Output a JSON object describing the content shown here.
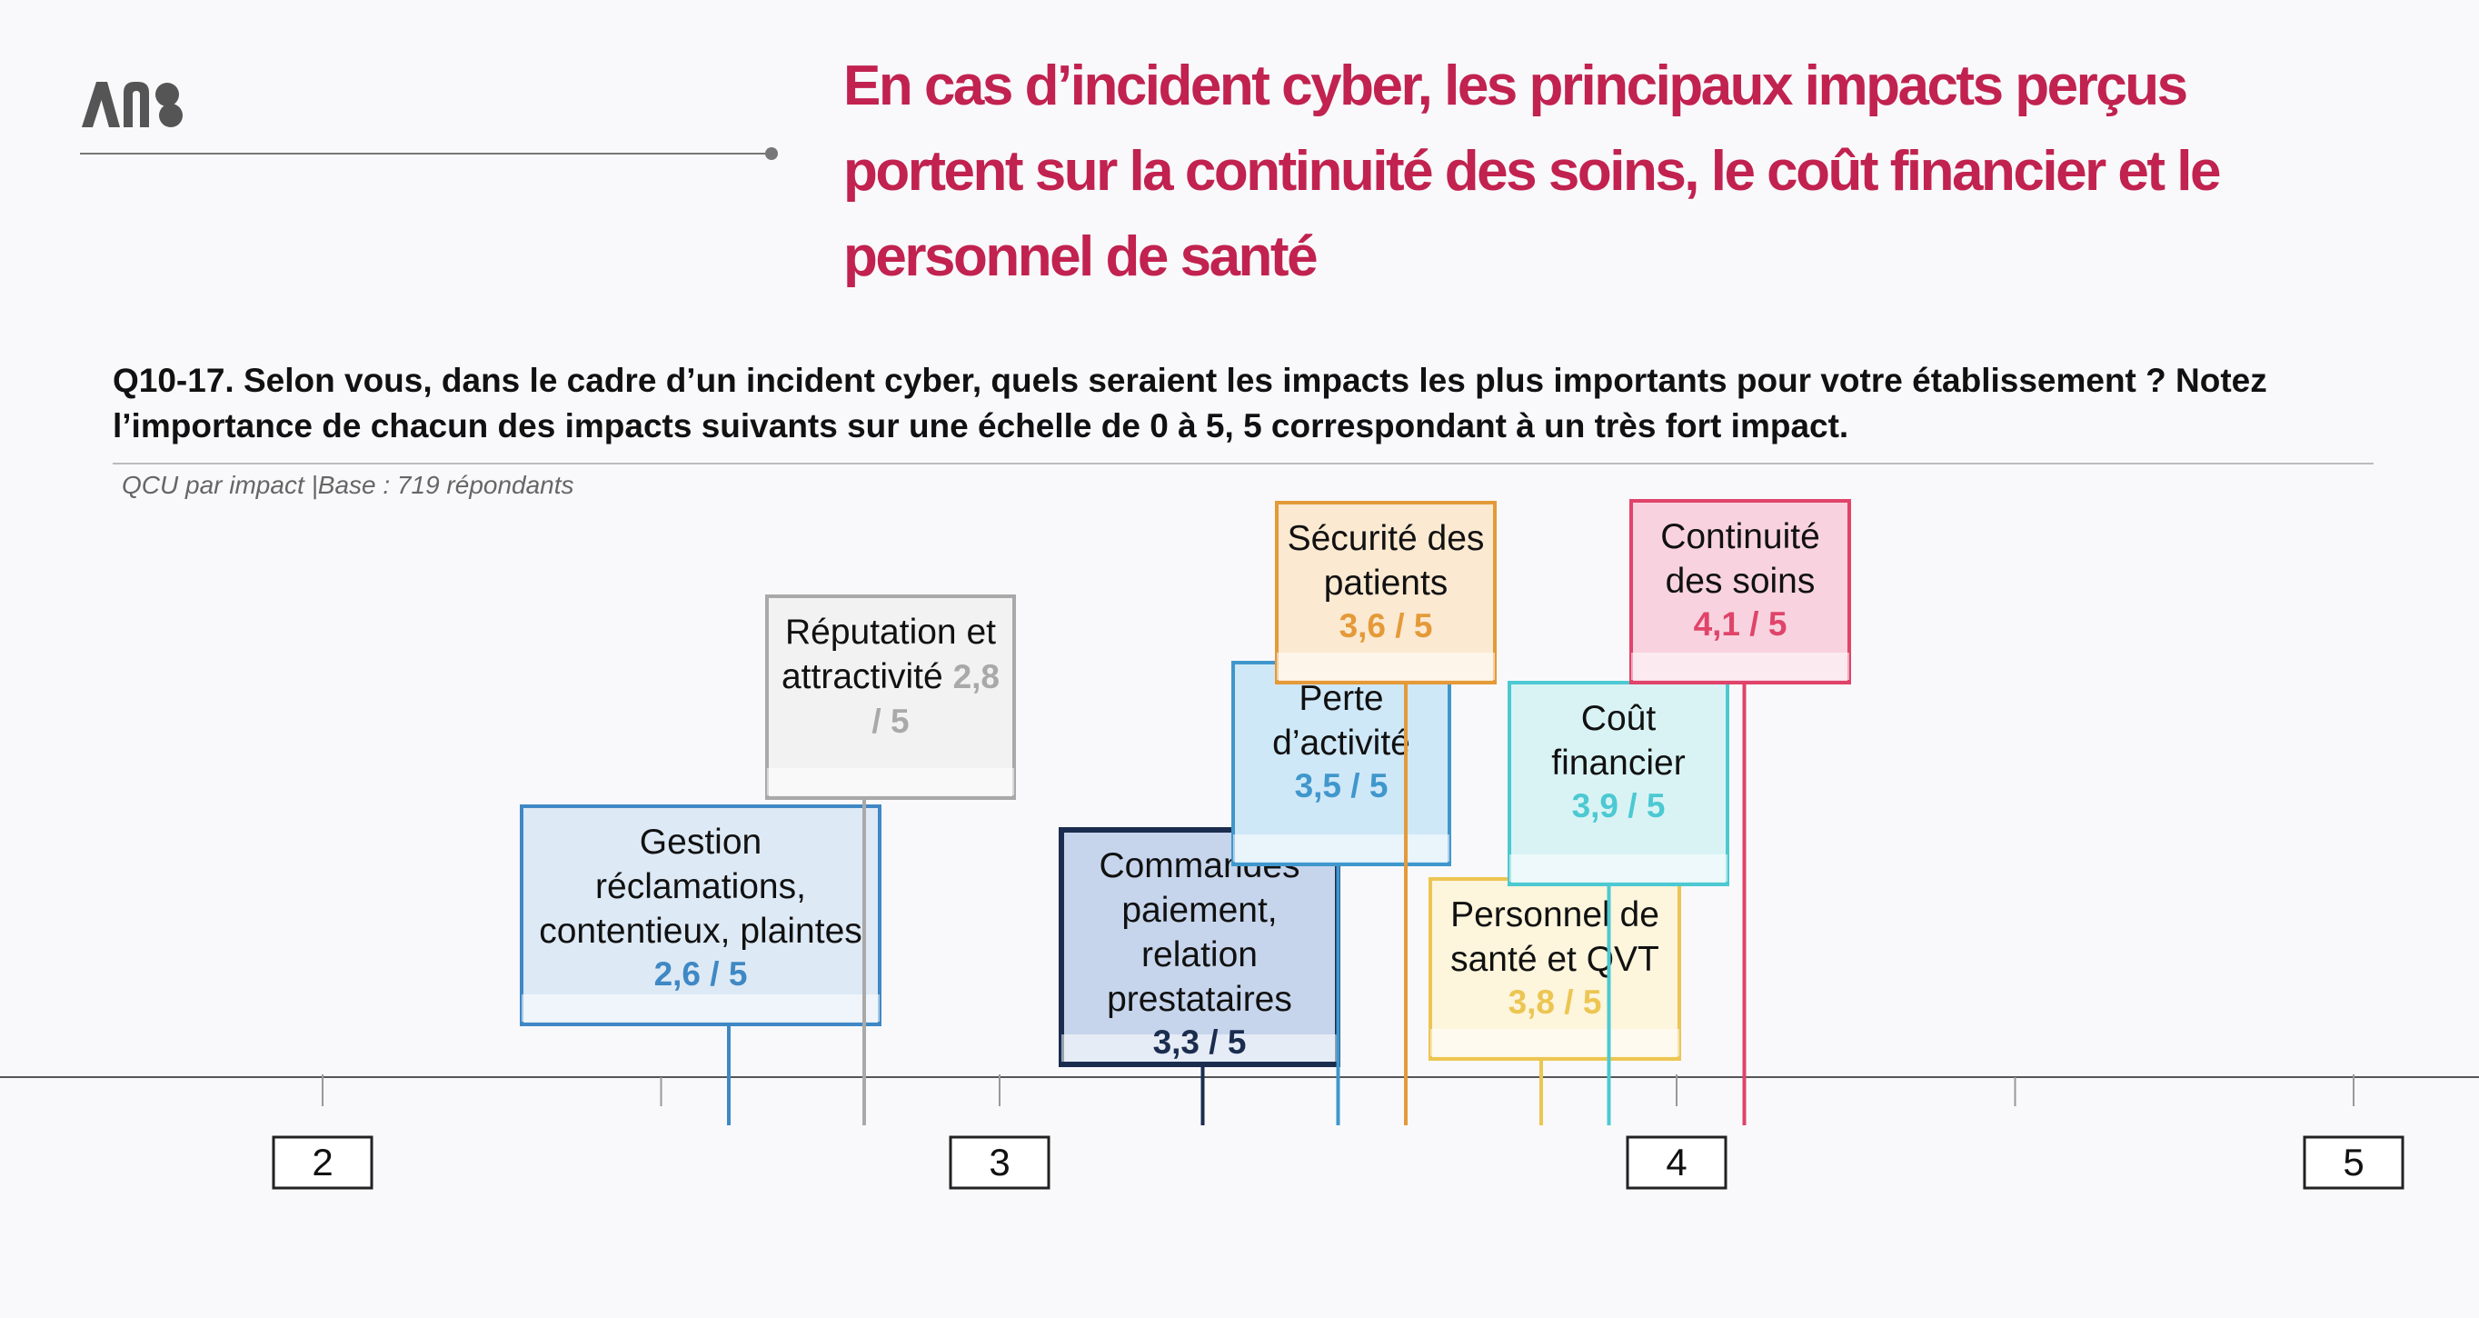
{
  "header": {
    "logo_text": "ANS",
    "title_lines": [
      "En cas d’incident cyber, les principaux impacts perçus",
      "portent sur la continuité des  soins, le coût financier et le",
      "personnel de santé"
    ]
  },
  "question": {
    "lines": [
      "Q10-17. Selon vous, dans le cadre d’un incident cyber, quels seraient les impacts les plus importants pour votre établissement ?  Notez",
      "l’importance de chacun des impacts suivants sur une échelle de 0 à 5, 5 correspondant à un très fort impact."
    ],
    "base": "QCU par impact |Base : 719 répondants"
  },
  "colors": {
    "title": "#c1224f",
    "axis": "#555555"
  },
  "chart_data": {
    "type": "scatter",
    "orientation": "horizontal-scale",
    "xlim": [
      1.6,
      5.2
    ],
    "ticks": [
      2,
      3,
      4,
      5
    ],
    "tick_labels": [
      "2",
      "3",
      "4",
      "5"
    ],
    "minor_ticks": [
      2.5,
      3.5,
      4.5
    ],
    "points": [
      {
        "name": "Gestion réclamations, contentieux, plaintes",
        "lines": [
          "Gestion",
          "réclamations,",
          "contentieux, plaintes"
        ],
        "value": 2.6,
        "label": "2,6 / 5",
        "color": "#3f88c5",
        "fill": "#dde9f5"
      },
      {
        "name": "Réputation et attractivité",
        "lines": [
          "Réputation et",
          "attractivité"
        ],
        "value": 2.8,
        "label": "2,8 / 5",
        "value_inline": true,
        "color": "#a9a9a9",
        "fill": "#f2f2f2"
      },
      {
        "name": "Commandes paiement, relation prestataires",
        "lines": [
          "Commandes",
          "paiement,",
          "relation",
          "prestataires"
        ],
        "value": 3.3,
        "label": "3,3 / 5",
        "color": "#1b2d4f",
        "fill": "#c6d5ec"
      },
      {
        "name": "Perte d’activité",
        "lines": [
          "Perte",
          "d’activité"
        ],
        "value": 3.5,
        "label": "3,5 / 5",
        "color": "#4097cc",
        "fill": "#cfe8f8"
      },
      {
        "name": "Sécurité des patients",
        "lines": [
          "Sécurité des",
          "patients"
        ],
        "value": 3.6,
        "label": "3,6 / 5",
        "color": "#e49a38",
        "fill": "#fbe9d2"
      },
      {
        "name": "Personnel de santé et QVT",
        "lines": [
          "Personnel de",
          "santé et QVT"
        ],
        "value": 3.8,
        "label": "3,8 / 5",
        "color": "#ecc552",
        "fill": "#fdf5dc"
      },
      {
        "name": "Coût financier",
        "lines": [
          "Coût",
          "financier"
        ],
        "value": 3.9,
        "label": "3,9 / 5",
        "color": "#4cc9d2",
        "fill": "#d9f3f5"
      },
      {
        "name": "Continuité des soins",
        "lines": [
          "Continuité",
          "des soins"
        ],
        "value": 4.1,
        "label": "4,1 / 5",
        "color": "#e0446a",
        "fill": "#f8d3df"
      }
    ]
  }
}
